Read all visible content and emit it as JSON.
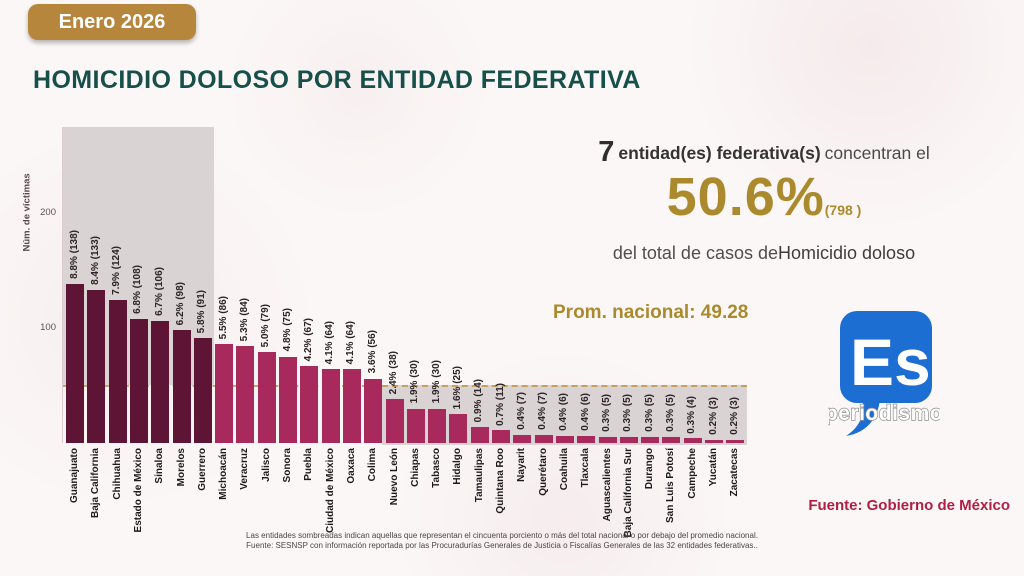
{
  "badge": {
    "label": "Enero 2026"
  },
  "title": "HOMICIDIO DOLOSO POR ENTIDAD FEDERATIVA",
  "summary": {
    "count": "7",
    "entities_label": "entidad(es) federativa(s)",
    "concentran_label": "concentran el",
    "percent": "50.6%",
    "cases": "(798 )",
    "total_prefix": "del total de casos de",
    "total_suffix": "Homicidio doloso"
  },
  "average": {
    "label": "Prom. nacional: 49.28",
    "value": 49.28
  },
  "source": "Fuente: Gobierno de México",
  "footnote": {
    "line1": "Las entidades sombreadas indican aquellas que representan el cincuenta porciento o más del total nacional o por debajo del promedio nacional.",
    "line2": "Fuente: SESNSP con información reportada por las Procuradurías Generales de Justicia o Fiscalías Generales de las 32 entidades federativas.."
  },
  "logo": {
    "text_main": "Es",
    "text_sub": "periodismo"
  },
  "colors": {
    "bg": "#fbf7f6",
    "badge_bg": "#b5863c",
    "title": "#17504b",
    "gold": "#ab8a2e",
    "source": "#b01f45",
    "shade": "#dad3d4",
    "avg_line": "#c59a52",
    "bar_dark": "#5e1535",
    "bar_bright": "#a8295b",
    "logo_blue": "#1c6ed3"
  },
  "chart_data": {
    "type": "bar",
    "title": "Homicidio doloso por entidad federativa",
    "xlabel": "",
    "ylabel": "Núm. de víctimas",
    "yticks": [
      100,
      200
    ],
    "ylim": [
      0,
      275
    ],
    "grid": false,
    "avg_line": 49.28,
    "dark_group_count": 7,
    "shaded_top_group_indices": [
      0,
      6
    ],
    "shaded_below_average_indices": [
      15,
      31
    ],
    "categories": [
      "Guanajuato",
      "Baja California",
      "Chihuahua",
      "Estado de México",
      "Sinaloa",
      "Morelos",
      "Guerrero",
      "Michoacán",
      "Veracruz",
      "Jalisco",
      "Sonora",
      "Puebla",
      "Ciudad de México",
      "Oaxaca",
      "Colima",
      "Nuevo León",
      "Chiapas",
      "Tabasco",
      "Hidalgo",
      "Tamaulipas",
      "Quintana Roo",
      "Nayarit",
      "Querétaro",
      "Coahuila",
      "Tlaxcala",
      "Aguascalientes",
      "Baja California Sur",
      "Durango",
      "San Luis Potosí",
      "Campeche",
      "Yucatán",
      "Zacatecas"
    ],
    "values": [
      138,
      133,
      124,
      108,
      106,
      98,
      91,
      86,
      84,
      79,
      75,
      67,
      64,
      64,
      56,
      38,
      30,
      30,
      25,
      14,
      11,
      7,
      7,
      6,
      6,
      5,
      5,
      5,
      5,
      4,
      3,
      3
    ],
    "percents": [
      8.8,
      8.4,
      7.9,
      6.8,
      6.7,
      6.2,
      5.8,
      5.5,
      5.3,
      5.0,
      4.8,
      4.2,
      4.1,
      4.1,
      3.6,
      2.4,
      1.9,
      1.9,
      1.6,
      0.9,
      0.7,
      0.4,
      0.4,
      0.4,
      0.4,
      0.3,
      0.3,
      0.3,
      0.3,
      0.3,
      0.2,
      0.2
    ],
    "labels": [
      "8.8% (138)",
      "8.4% (133)",
      "7.9% (124)",
      "6.8% (108)",
      "6.7% (106)",
      "6.2% (98)",
      "5.8% (91)",
      "5.5% (86)",
      "5.3% (84)",
      "5.0% (79)",
      "4.8% (75)",
      "4.2% (67)",
      "4.1% (64)",
      "4.1% (64)",
      "3.6% (56)",
      "2.4% (38)",
      "1.9% (30)",
      "1.9% (30)",
      "1.6% (25)",
      "0.9% (14)",
      "0.7% (11)",
      "0.4% (7)",
      "0.4% (7)",
      "0.4% (6)",
      "0.4% (6)",
      "0.3% (5)",
      "0.3% (5)",
      "0.3% (5)",
      "0.3% (5)",
      "0.3% (4)",
      "0.2% (3)",
      "0.2% (3)"
    ]
  }
}
